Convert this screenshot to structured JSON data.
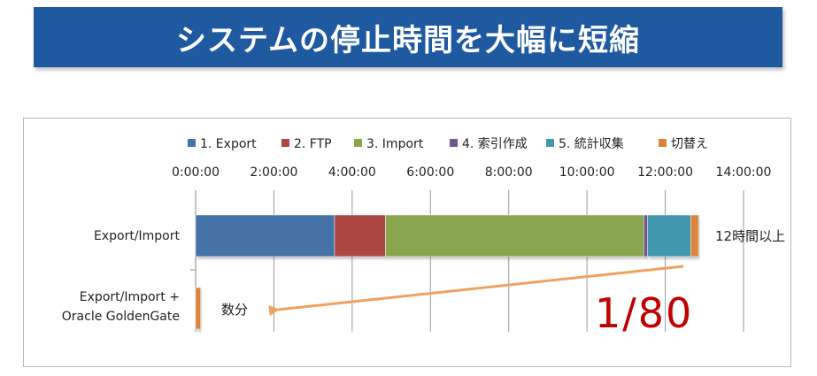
{
  "header": {
    "title": "システムの停止時間を大幅に短縮"
  },
  "chart_data": {
    "type": "bar",
    "orientation": "horizontal",
    "stacked": true,
    "x_axis": {
      "min": 0,
      "max": 14,
      "unit": "hours",
      "ticks": [
        0,
        2,
        4,
        6,
        8,
        10,
        12,
        14
      ],
      "tick_labels": [
        "0:00:00",
        "2:00:00",
        "4:00:00",
        "6:00:00",
        "8:00:00",
        "10:00:00",
        "12:00:00",
        "14:00:00"
      ],
      "position": "top"
    },
    "grid": true,
    "legend_position": "top",
    "categories": [
      "Export/Import",
      "Export/Import +\nOracle GoldenGate"
    ],
    "series": [
      {
        "name": "1. Export",
        "color": "#4572a7",
        "values": [
          3.55,
          0
        ]
      },
      {
        "name": "2. FTP",
        "color": "#aa4643",
        "values": [
          1.3,
          0
        ]
      },
      {
        "name": "3. Import",
        "color": "#89a54e",
        "values": [
          6.6,
          0
        ]
      },
      {
        "name": "4. 索引作成",
        "color": "#71588f",
        "values": [
          0.1,
          0
        ]
      },
      {
        "name": "5. 統計収集",
        "color": "#4198af",
        "values": [
          1.1,
          0
        ]
      },
      {
        "name": "切替え",
        "color": "#db843d",
        "values": [
          0.2,
          0.13
        ]
      }
    ],
    "annotations": {
      "row1_label": "12時間以上",
      "row2_label": "数分",
      "ratio": "1/80",
      "arrow_color": "#f0a060",
      "ratio_color": "#c00000"
    }
  }
}
